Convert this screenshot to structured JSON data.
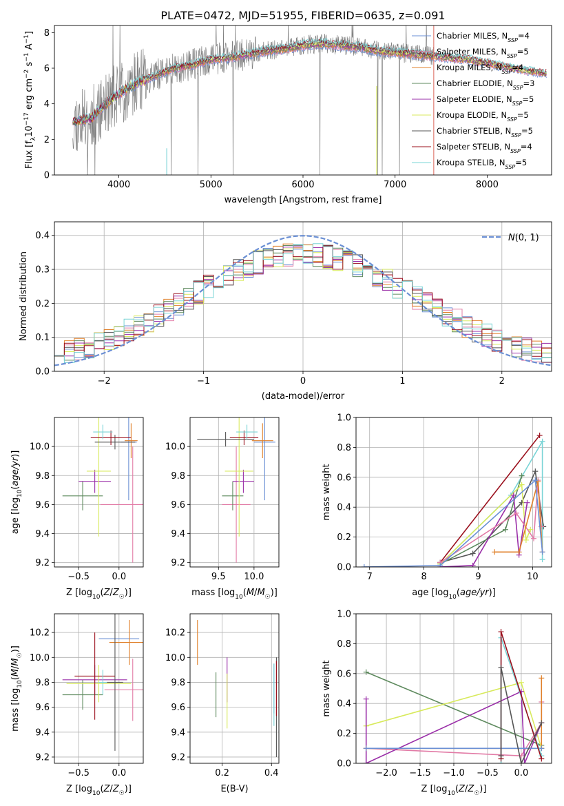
{
  "title": "PLATE=0472, MJD=51955, FIBERID=0635, z=0.091",
  "colors": {
    "chabrier_miles": "#6a8fd4",
    "salpeter_miles": "#e27ba6",
    "kroupa_miles": "#e0812b",
    "chabrier_elodie": "#5e8a5e",
    "salpeter_elodie": "#9a2ea8",
    "kroupa_elodie": "#d8ea5c",
    "chabrier_stelib": "#555555",
    "salpeter_stelib": "#9b111e",
    "kroupa_stelib": "#79d4d6",
    "data": "#808080",
    "normal": "#6a8fd4"
  },
  "chart_data": [
    {
      "id": "spectrum",
      "type": "line",
      "title": "PLATE=0472, MJD=51955, FIBERID=0635, z=0.091",
      "xlabel": "wavelength [Angstrom, rest frame]",
      "ylabel": "Flux [f_λ 10^-17 erg cm^-2 s^-1 A^-1]",
      "xlim": [
        3300,
        8700
      ],
      "ylim": [
        0,
        8.4
      ],
      "xticks": [
        4000,
        5000,
        6000,
        7000,
        8000
      ],
      "yticks": [
        0,
        2,
        4,
        6,
        8
      ],
      "legend_position": "right",
      "legend": [
        {
          "name": "Chabrier MILES, N_SSP=4",
          "key": "chabrier_miles"
        },
        {
          "name": "Salpeter MILES, N_SSP=5",
          "key": "salpeter_miles"
        },
        {
          "name": "Kroupa MILES, N_SSP=4",
          "key": "kroupa_miles"
        },
        {
          "name": "Chabrier ELODIE, N_SSP=3",
          "key": "chabrier_elodie"
        },
        {
          "name": "Salpeter ELODIE, N_SSP=5",
          "key": "salpeter_elodie"
        },
        {
          "name": "Kroupa ELODIE, N_SSP=5",
          "key": "kroupa_elodie"
        },
        {
          "name": "Chabrier STELIB, N_SSP=5",
          "key": "chabrier_stelib"
        },
        {
          "name": "Salpeter STELIB, N_SSP=4",
          "key": "salpeter_stelib"
        },
        {
          "name": "Kroupa STELIB, N_SSP=5",
          "key": "kroupa_stelib"
        }
      ],
      "continuum": {
        "x": [
          3500,
          3600,
          3700,
          3800,
          3900,
          4000,
          4100,
          4200,
          4300,
          4400,
          4500,
          4600,
          4800,
          5000,
          5200,
          5400,
          5600,
          5800,
          6000,
          6200,
          6400,
          6600,
          6800,
          7000,
          7200,
          7400,
          7600,
          7800,
          8000,
          8200,
          8400,
          8650
        ],
        "y": [
          3.0,
          3.1,
          3.2,
          3.7,
          4.2,
          4.6,
          4.9,
          5.2,
          5.4,
          5.6,
          5.8,
          6.0,
          6.2,
          6.5,
          6.6,
          6.8,
          7.0,
          7.1,
          7.3,
          7.4,
          7.3,
          7.2,
          7.0,
          6.9,
          6.8,
          6.7,
          6.6,
          6.5,
          6.3,
          6.1,
          5.9,
          5.7
        ]
      },
      "data_range": [
        3500,
        7420
      ]
    },
    {
      "id": "residuals",
      "type": "line",
      "xlabel": "(data-model)/error",
      "ylabel": "Normed distribution",
      "xlim": [
        -2.5,
        2.5
      ],
      "ylim": [
        0,
        0.44
      ],
      "xticks": [
        -2,
        -1,
        0,
        1,
        2
      ],
      "yticks": [
        0.0,
        0.1,
        0.2,
        0.3,
        0.4
      ],
      "legend_position": "top-right",
      "legend": [
        {
          "name": "N(0,1)"
        }
      ],
      "bins": 50
    },
    {
      "id": "age_vs_Z",
      "type": "scatter",
      "xlabel": "Z [log10(Z/Z☉)]",
      "ylabel": "age [log10(age/yr)]",
      "xlim": [
        -0.8,
        0.3
      ],
      "ylim": [
        9.17,
        10.2
      ],
      "xticks": [
        -0.5,
        0.0
      ],
      "yticks": [
        9.2,
        9.4,
        9.6,
        9.8,
        10.0
      ],
      "points": [
        {
          "key": "chabrier_miles",
          "x": 0.12,
          "y": 10.03,
          "xerr": 0.1,
          "yerr": 0.4
        },
        {
          "key": "salpeter_miles",
          "x": 0.17,
          "y": 9.6,
          "xerr": 0.4,
          "yerr": 0.4
        },
        {
          "key": "kroupa_miles",
          "x": 0.15,
          "y": 10.04,
          "xerr": 0.08,
          "yerr": 0.12
        },
        {
          "key": "chabrier_elodie",
          "x": -0.45,
          "y": 9.66,
          "xerr": 0.25,
          "yerr": 0.1
        },
        {
          "key": "salpeter_elodie",
          "x": -0.3,
          "y": 9.76,
          "xerr": 0.2,
          "yerr": 0.08
        },
        {
          "key": "kroupa_elodie",
          "x": -0.25,
          "y": 9.83,
          "xerr": 0.15,
          "yerr": 0.45
        },
        {
          "key": "chabrier_stelib",
          "x": -0.05,
          "y": 10.03,
          "xerr": 0.25,
          "yerr": 0.05
        },
        {
          "key": "salpeter_stelib",
          "x": -0.1,
          "y": 10.06,
          "xerr": 0.25,
          "yerr": 0.05
        },
        {
          "key": "kroupa_stelib",
          "x": -0.2,
          "y": 10.1,
          "xerr": 0.12,
          "yerr": 0.05
        }
      ]
    },
    {
      "id": "age_vs_mass",
      "type": "scatter",
      "xlabel": "mass [log10(M/M☉)]",
      "ylabel": "",
      "xlim": [
        9.1,
        10.35
      ],
      "ylim": [
        9.17,
        10.2
      ],
      "xticks": [
        9.5,
        10.0
      ],
      "yticks": [
        9.2,
        9.4,
        9.6,
        9.8,
        10.0
      ],
      "points": [
        {
          "key": "chabrier_miles",
          "x": 10.15,
          "y": 10.03,
          "xerr": 0.15,
          "yerr": 0.4
        },
        {
          "key": "salpeter_miles",
          "x": 9.75,
          "y": 9.6,
          "xerr": 0.2,
          "yerr": 0.4
        },
        {
          "key": "kroupa_miles",
          "x": 10.12,
          "y": 10.04,
          "xerr": 0.15,
          "yerr": 0.12
        },
        {
          "key": "chabrier_elodie",
          "x": 9.7,
          "y": 9.66,
          "xerr": 0.15,
          "yerr": 0.1
        },
        {
          "key": "salpeter_elodie",
          "x": 9.85,
          "y": 9.76,
          "xerr": 0.15,
          "yerr": 0.08
        },
        {
          "key": "kroupa_elodie",
          "x": 9.79,
          "y": 9.83,
          "xerr": 0.2,
          "yerr": 0.45
        },
        {
          "key": "chabrier_stelib",
          "x": 9.6,
          "y": 10.05,
          "xerr": 0.4,
          "yerr": 0.05
        },
        {
          "key": "salpeter_stelib",
          "x": 9.86,
          "y": 10.06,
          "xerr": 0.2,
          "yerr": 0.05
        },
        {
          "key": "kroupa_stelib",
          "x": 9.9,
          "y": 10.1,
          "xerr": 0.15,
          "yerr": 0.05
        }
      ]
    },
    {
      "id": "weight_vs_age",
      "type": "line",
      "xlabel": "age [log10(age/yr)]",
      "ylabel": "mass weight",
      "xlim": [
        6.75,
        10.35
      ],
      "ylim": [
        0,
        1.0
      ],
      "xticks": [
        7,
        8,
        9,
        10
      ],
      "yticks": [
        0.0,
        0.2,
        0.4,
        0.6,
        0.8,
        1.0
      ],
      "series": [
        {
          "key": "salpeter_stelib",
          "x": [
            8.3,
            10.13
          ],
          "y": [
            0.03,
            0.88
          ]
        },
        {
          "key": "kroupa_stelib",
          "x": [
            8.3,
            9.6,
            10.18,
            10.18
          ],
          "y": [
            0.02,
            0.48,
            0.84,
            0.05
          ]
        },
        {
          "key": "chabrier_stelib",
          "x": [
            8.3,
            8.9,
            9.8,
            10.05,
            10.2
          ],
          "y": [
            0.03,
            0.09,
            0.43,
            0.64,
            0.27
          ]
        },
        {
          "key": "chabrier_elodie",
          "x": [
            8.3,
            9.5,
            9.8
          ],
          "y": [
            0.02,
            0.25,
            0.61
          ]
        },
        {
          "key": "kroupa_elodie",
          "x": [
            8.3,
            9.8,
            9.88,
            9.96
          ],
          "y": [
            0.02,
            0.55,
            0.18,
            0.25
          ]
        },
        {
          "key": "salpeter_elodie",
          "x": [
            8.3,
            8.9,
            9.65,
            9.75,
            9.9
          ],
          "y": [
            0.0,
            0.01,
            0.48,
            0.08,
            0.43
          ]
        },
        {
          "key": "salpeter_miles",
          "x": [
            8.3,
            9.7,
            10.02,
            10.1,
            10.16
          ],
          "y": [
            0.03,
            0.36,
            0.19,
            0.58,
            0.27
          ]
        },
        {
          "key": "kroupa_miles",
          "x": [
            9.3,
            9.75,
            10.1,
            10.18
          ],
          "y": [
            0.1,
            0.1,
            0.57,
            0.1
          ]
        },
        {
          "key": "chabrier_miles",
          "x": [
            6.9,
            8.3,
            10.05,
            10.18
          ],
          "y": [
            0.0,
            0.01,
            0.58,
            0.1
          ]
        }
      ]
    },
    {
      "id": "mass_vs_Z",
      "type": "scatter",
      "xlabel": "Z [log10(Z/Z☉)]",
      "ylabel": "mass [log10(M/M☉)]",
      "xlim": [
        -0.8,
        0.3
      ],
      "ylim": [
        9.15,
        10.35
      ],
      "xticks": [
        -0.5,
        0.0
      ],
      "yticks": [
        9.2,
        9.4,
        9.6,
        9.8,
        10.0,
        10.2
      ],
      "points": [
        {
          "key": "chabrier_miles",
          "x": 0.0,
          "y": 10.15,
          "xerr": 0.25,
          "yerr": 0.0
        },
        {
          "key": "salpeter_miles",
          "x": 0.17,
          "y": 9.74,
          "xerr": 0.35,
          "yerr": 0.25
        },
        {
          "key": "kroupa_miles",
          "x": 0.13,
          "y": 10.12,
          "xerr": 0.25,
          "yerr": 0.18
        },
        {
          "key": "chabrier_elodie",
          "x": -0.45,
          "y": 9.7,
          "xerr": 0.25,
          "yerr": 0.12
        },
        {
          "key": "salpeter_elodie",
          "x": -0.3,
          "y": 9.82,
          "xerr": 0.4,
          "yerr": 0.12
        },
        {
          "key": "kroupa_elodie",
          "x": -0.25,
          "y": 9.79,
          "xerr": 0.4,
          "yerr": 0.15
        },
        {
          "key": "chabrier_stelib",
          "x": -0.05,
          "y": 9.8,
          "xerr": 0.1,
          "yerr": 0.55
        },
        {
          "key": "salpeter_stelib",
          "x": -0.3,
          "y": 9.85,
          "xerr": 0.25,
          "yerr": 0.35
        },
        {
          "key": "kroupa_stelib",
          "x": -0.2,
          "y": 9.8,
          "xerr": 0.05,
          "yerr": 0.1
        }
      ]
    },
    {
      "id": "mass_vs_ebv",
      "type": "scatter",
      "xlabel": "E(B-V)",
      "ylabel": "",
      "xlim": [
        0.07,
        0.43
      ],
      "ylim": [
        9.15,
        10.35
      ],
      "xticks": [
        0.2,
        0.4
      ],
      "yticks": [
        9.2,
        9.4,
        9.6,
        9.8,
        10.0,
        10.2
      ],
      "points": [
        {
          "key": "chabrier_miles",
          "x": 0.41,
          "y": 9.75,
          "xerr": 0.0,
          "yerr": 0.2
        },
        {
          "key": "kroupa_miles",
          "x": 0.1,
          "y": 10.12,
          "xerr": 0.0,
          "yerr": 0.18
        },
        {
          "key": "chabrier_elodie",
          "x": 0.175,
          "y": 9.7,
          "xerr": 0.0,
          "yerr": 0.18
        },
        {
          "key": "salpeter_elodie",
          "x": 0.22,
          "y": 9.82,
          "xerr": 0.0,
          "yerr": 0.18
        },
        {
          "key": "kroupa_elodie",
          "x": 0.22,
          "y": 9.65,
          "xerr": 0.0,
          "yerr": 0.22
        },
        {
          "key": "chabrier_stelib",
          "x": 0.42,
          "y": 9.6,
          "xerr": 0.0,
          "yerr": 0.4
        },
        {
          "key": "salpeter_stelib",
          "x": 0.42,
          "y": 9.75,
          "xerr": 0.0,
          "yerr": 0.22
        },
        {
          "key": "kroupa_stelib",
          "x": 0.41,
          "y": 9.7,
          "xerr": 0.0,
          "yerr": 0.25
        }
      ]
    },
    {
      "id": "weight_vs_Z",
      "type": "line",
      "xlabel": "Z [log10(Z/Z☉)]",
      "ylabel": "mass weight",
      "xlim": [
        -2.45,
        0.45
      ],
      "ylim": [
        0,
        1.0
      ],
      "xticks": [
        -2.0,
        -1.5,
        -1.0,
        -0.5,
        0.0
      ],
      "yticks": [
        0.0,
        0.2,
        0.4,
        0.6,
        0.8,
        1.0
      ],
      "series": [
        {
          "key": "chabrier_elodie",
          "x": [
            -2.3,
            0.3
          ],
          "y": [
            0.61,
            0.12
          ]
        },
        {
          "key": "kroupa_elodie",
          "x": [
            -2.3,
            0.0,
            0.3
          ],
          "y": [
            0.25,
            0.54,
            0.1
          ]
        },
        {
          "key": "salpeter_miles",
          "x": [
            -2.3,
            0.0,
            0.3,
            0.3
          ],
          "y": [
            0.1,
            0.05,
            0.27,
            0.41
          ]
        },
        {
          "key": "salpeter_elodie",
          "x": [
            -2.3,
            -2.3,
            0.0,
            0.05,
            0.3
          ],
          "y": [
            0.43,
            0.0,
            0.48,
            0.0,
            0.27
          ]
        },
        {
          "key": "kroupa_miles",
          "x": [
            -2.3,
            0.3,
            0.3
          ],
          "y": [
            0.1,
            0.1,
            0.57
          ]
        },
        {
          "key": "chabrier_miles",
          "x": [
            -2.3,
            0.3
          ],
          "y": [
            0.1,
            0.1
          ]
        },
        {
          "key": "kroupa_stelib",
          "x": [
            -0.3,
            -0.3,
            0.3
          ],
          "y": [
            0.0,
            0.84,
            0.05
          ]
        },
        {
          "key": "salpeter_stelib",
          "x": [
            -0.3,
            -0.3,
            0.3
          ],
          "y": [
            0.03,
            0.88,
            0.03
          ]
        },
        {
          "key": "chabrier_stelib",
          "x": [
            -0.3,
            -0.3,
            0.0,
            0.3
          ],
          "y": [
            0.05,
            0.64,
            0.0,
            0.27
          ]
        }
      ]
    }
  ]
}
